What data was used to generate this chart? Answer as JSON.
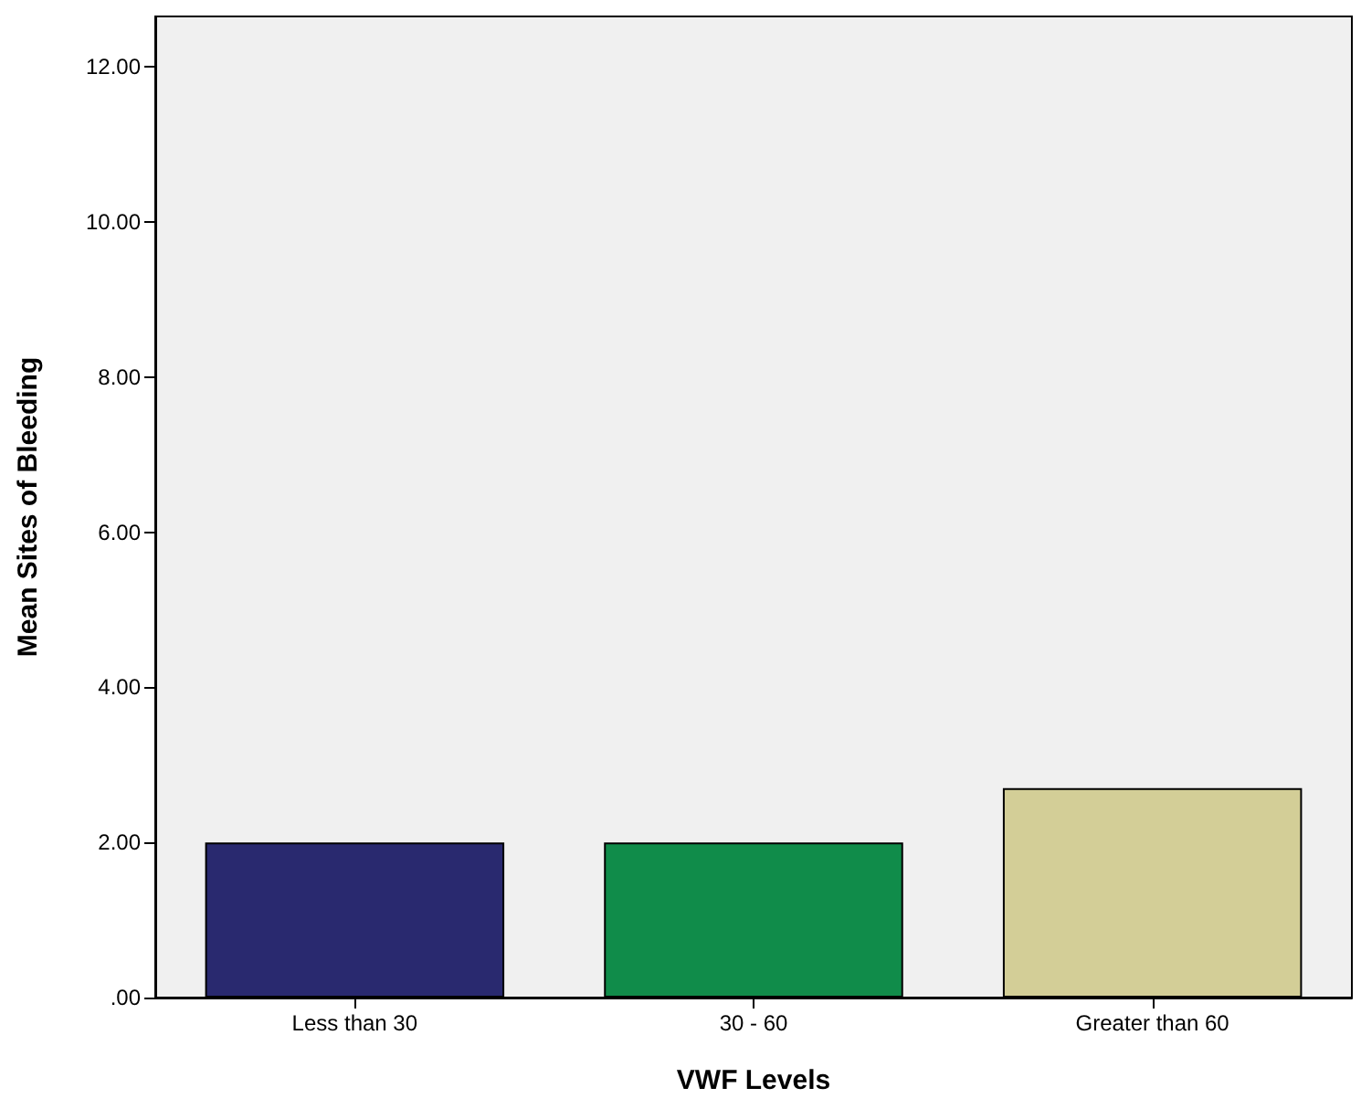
{
  "chart_data": {
    "type": "bar",
    "xlabel": "VWF Levels",
    "ylabel": "Mean Sites of Bleeding",
    "categories": [
      "Less than 30",
      "30 - 60",
      "Greater than 60"
    ],
    "values": [
      2.0,
      2.0,
      2.7
    ],
    "colors": [
      "#29296f",
      "#108c4a",
      "#d3ce97"
    ],
    "ylim": [
      0,
      12.65
    ],
    "yticks": [
      {
        "value": 0,
        "label": ".00"
      },
      {
        "value": 2,
        "label": "2.00"
      },
      {
        "value": 4,
        "label": "4.00"
      },
      {
        "value": 6,
        "label": "6.00"
      },
      {
        "value": 8,
        "label": "8.00"
      },
      {
        "value": 10,
        "label": "10.00"
      },
      {
        "value": 12,
        "label": "12.00"
      }
    ],
    "grid": false
  }
}
